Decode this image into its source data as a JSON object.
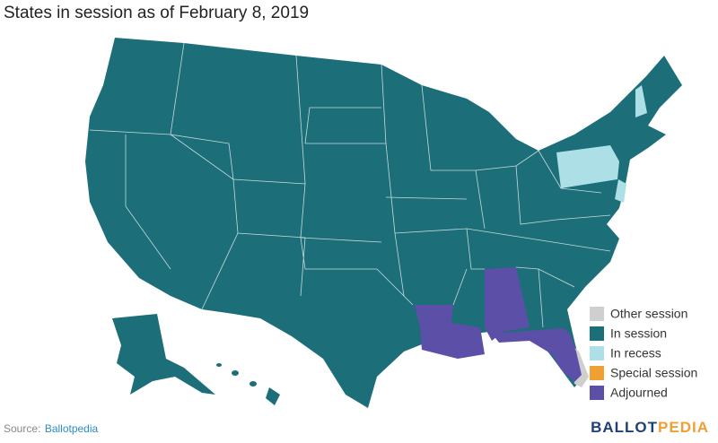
{
  "title": "States in session as of February 8, 2019",
  "legend": [
    {
      "label": "Other session",
      "color": "#cfcfcf"
    },
    {
      "label": "In session",
      "color": "#1c6e78"
    },
    {
      "label": "In recess",
      "color": "#ade0e6"
    },
    {
      "label": "Special session",
      "color": "#f0a032"
    },
    {
      "label": "Adjourned",
      "color": "#5b4fa8"
    }
  ],
  "source": {
    "label": "Source:",
    "link": "Ballotpedia"
  },
  "logo": {
    "first": "BALLOT",
    "second": "PEDIA"
  }
}
